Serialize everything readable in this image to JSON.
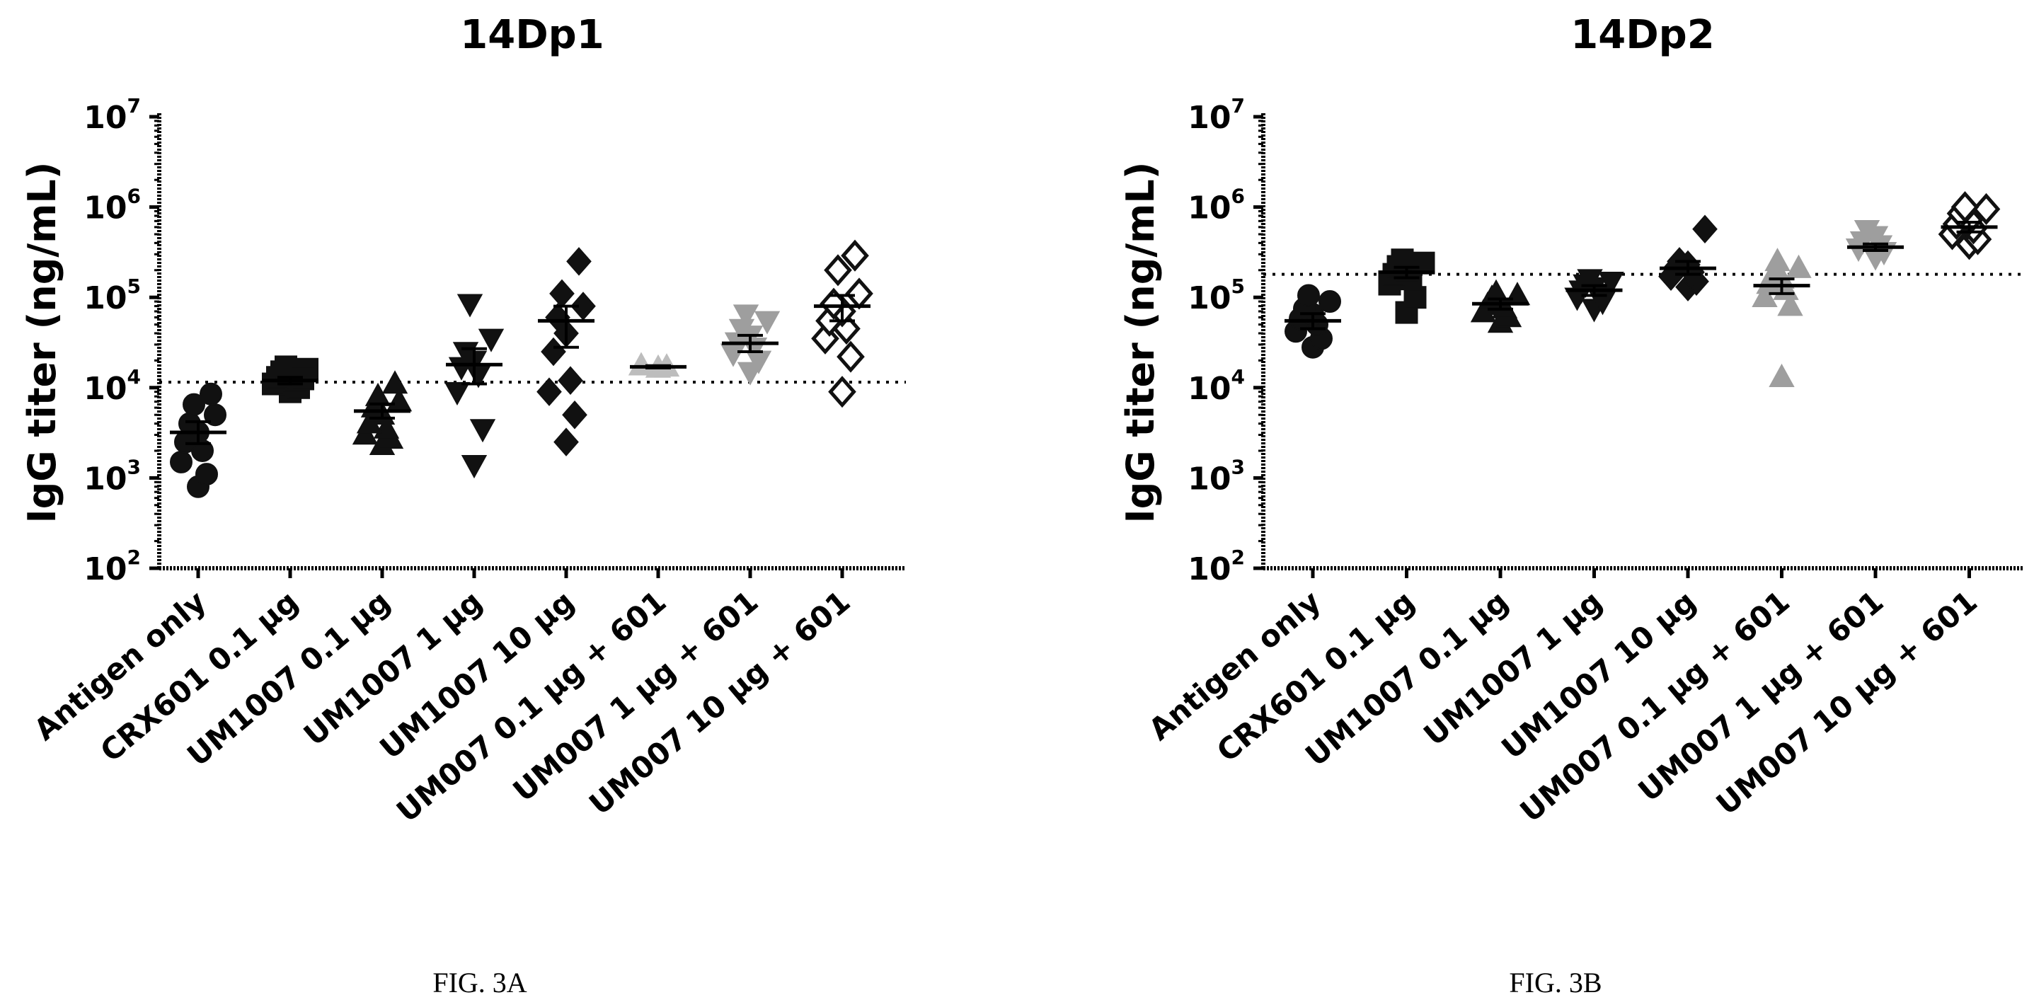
{
  "chart_data": [
    {
      "type": "scatter",
      "title": "14Dp1",
      "ylabel": "IgG titer (ng/mL)",
      "yscale": "log",
      "ylim": [
        100,
        10000000
      ],
      "yticks": [
        {
          "base": "10",
          "exp": "2",
          "value": 100
        },
        {
          "base": "10",
          "exp": "3",
          "value": 1000
        },
        {
          "base": "10",
          "exp": "4",
          "value": 10000
        },
        {
          "base": "10",
          "exp": "5",
          "value": 100000
        },
        {
          "base": "10",
          "exp": "6",
          "value": 1000000
        },
        {
          "base": "10",
          "exp": "7",
          "value": 10000000
        }
      ],
      "reference_line": 11500,
      "caption": "FIG. 3A",
      "groups": [
        {
          "label": "Antigen only",
          "marker": "circle",
          "color": "#111111",
          "mean": 3200,
          "sem_low": 2400,
          "sem_high": 4200,
          "points": [
            800,
            1100,
            1500,
            2000,
            2500,
            3200,
            4000,
            5000,
            6500,
            8500
          ]
        },
        {
          "label": "CRX601 0.1 µg",
          "marker": "square",
          "color": "#111111",
          "mean": 12000,
          "sem_low": 11000,
          "sem_high": 13000,
          "points": [
            9000,
            10000,
            11000,
            12000,
            13000,
            14000,
            15000,
            16000,
            17000,
            12500
          ]
        },
        {
          "label": "UM1007 0.1 µg",
          "marker": "triangle-up",
          "color": "#111111",
          "mean": 5500,
          "sem_low": 4600,
          "sem_high": 6600,
          "points": [
            2300,
            2700,
            3000,
            3500,
            4000,
            5000,
            6000,
            7000,
            8000,
            11000
          ]
        },
        {
          "label": "UM1007 1 µg",
          "marker": "triangle-down",
          "color": "#111111",
          "mean": 18000,
          "sem_low": 11000,
          "sem_high": 27000,
          "points": [
            1400,
            3500,
            9000,
            14000,
            17000,
            20000,
            25000,
            35000,
            85000
          ]
        },
        {
          "label": "UM1007 10 µg",
          "marker": "diamond",
          "color": "#111111",
          "mean": 55000,
          "sem_low": 28000,
          "sem_high": 80000,
          "points": [
            2500,
            5000,
            9000,
            12000,
            25000,
            40000,
            60000,
            80000,
            110000,
            250000
          ]
        },
        {
          "label": "UM007 0.1 µg  + 601",
          "marker": "triangle-up",
          "color": "#bdbdbd",
          "mean": 17000,
          "sem_low": 16500,
          "sem_high": 17500,
          "points": [
            16500,
            17000,
            17500
          ]
        },
        {
          "label": "UM007 1 µg + 601",
          "marker": "triangle-down",
          "color": "#9e9e9e",
          "mean": 31000,
          "sem_low": 25000,
          "sem_high": 38000,
          "points": [
            15000,
            20000,
            24000,
            28000,
            32000,
            38000,
            45000,
            55000,
            65000
          ]
        },
        {
          "label": "UM007 10 µg + 601",
          "marker": "diamond-open",
          "color": "#111111",
          "mean": 80000,
          "sem_low": 55000,
          "sem_high": 105000,
          "points": [
            9000,
            22000,
            35000,
            45000,
            55000,
            70000,
            85000,
            110000,
            200000,
            290000
          ]
        }
      ]
    },
    {
      "type": "scatter",
      "title": "14Dp2",
      "ylabel": "IgG titer (ng/mL)",
      "yscale": "log",
      "ylim": [
        100,
        10000000
      ],
      "yticks": [
        {
          "base": "10",
          "exp": "2",
          "value": 100
        },
        {
          "base": "10",
          "exp": "3",
          "value": 1000
        },
        {
          "base": "10",
          "exp": "4",
          "value": 10000
        },
        {
          "base": "10",
          "exp": "5",
          "value": 100000
        },
        {
          "base": "10",
          "exp": "6",
          "value": 1000000
        },
        {
          "base": "10",
          "exp": "7",
          "value": 10000000
        }
      ],
      "reference_line": 180000,
      "caption": "FIG. 3B",
      "groups": [
        {
          "label": "Antigen only",
          "marker": "circle",
          "color": "#111111",
          "mean": 55000,
          "sem_low": 45000,
          "sem_high": 66000,
          "points": [
            28000,
            35000,
            42000,
            50000,
            58000,
            65000,
            75000,
            90000,
            105000
          ]
        },
        {
          "label": "CRX601 0.1 µg",
          "marker": "square",
          "color": "#111111",
          "mean": 190000,
          "sem_low": 165000,
          "sem_high": 215000,
          "points": [
            68000,
            100000,
            140000,
            160000,
            180000,
            200000,
            220000,
            240000,
            260000
          ]
        },
        {
          "label": "UM1007 0.1 µg",
          "marker": "triangle-up",
          "color": "#111111",
          "mean": 85000,
          "sem_low": 74000,
          "sem_high": 96000,
          "points": [
            52000,
            60000,
            68000,
            75000,
            82000,
            90000,
            98000,
            105000,
            112000
          ]
        },
        {
          "label": "UM1007 1 µg",
          "marker": "triangle-down",
          "color": "#111111",
          "mean": 120000,
          "sem_low": 105000,
          "sem_high": 135000,
          "points": [
            75000,
            90000,
            100000,
            110000,
            120000,
            130000,
            140000,
            150000,
            160000
          ]
        },
        {
          "label": "UM1007 10 µg",
          "marker": "diamond",
          "color": "#111111",
          "mean": 210000,
          "sem_low": 180000,
          "sem_high": 250000,
          "points": [
            130000,
            150000,
            170000,
            190000,
            210000,
            230000,
            250000,
            570000
          ]
        },
        {
          "label": "UM007 0.1 µg  + 601",
          "marker": "triangle-up",
          "color": "#9e9e9e",
          "mean": 135000,
          "sem_low": 110000,
          "sem_high": 160000,
          "points": [
            13000,
            80000,
            100000,
            120000,
            140000,
            160000,
            180000,
            210000,
            250000
          ]
        },
        {
          "label": "UM007 1 µg + 601",
          "marker": "triangle-down",
          "color": "#9e9e9e",
          "mean": 360000,
          "sem_low": 330000,
          "sem_high": 390000,
          "points": [
            280000,
            320000,
            350000,
            380000,
            420000,
            480000,
            560000
          ]
        },
        {
          "label": "UM007 10 µg + 601",
          "marker": "diamond-open",
          "color": "#111111",
          "mean": 600000,
          "sem_low": 530000,
          "sem_high": 680000,
          "points": [
            390000,
            440000,
            500000,
            580000,
            650000,
            720000,
            850000,
            950000,
            1000000
          ]
        }
      ]
    }
  ]
}
